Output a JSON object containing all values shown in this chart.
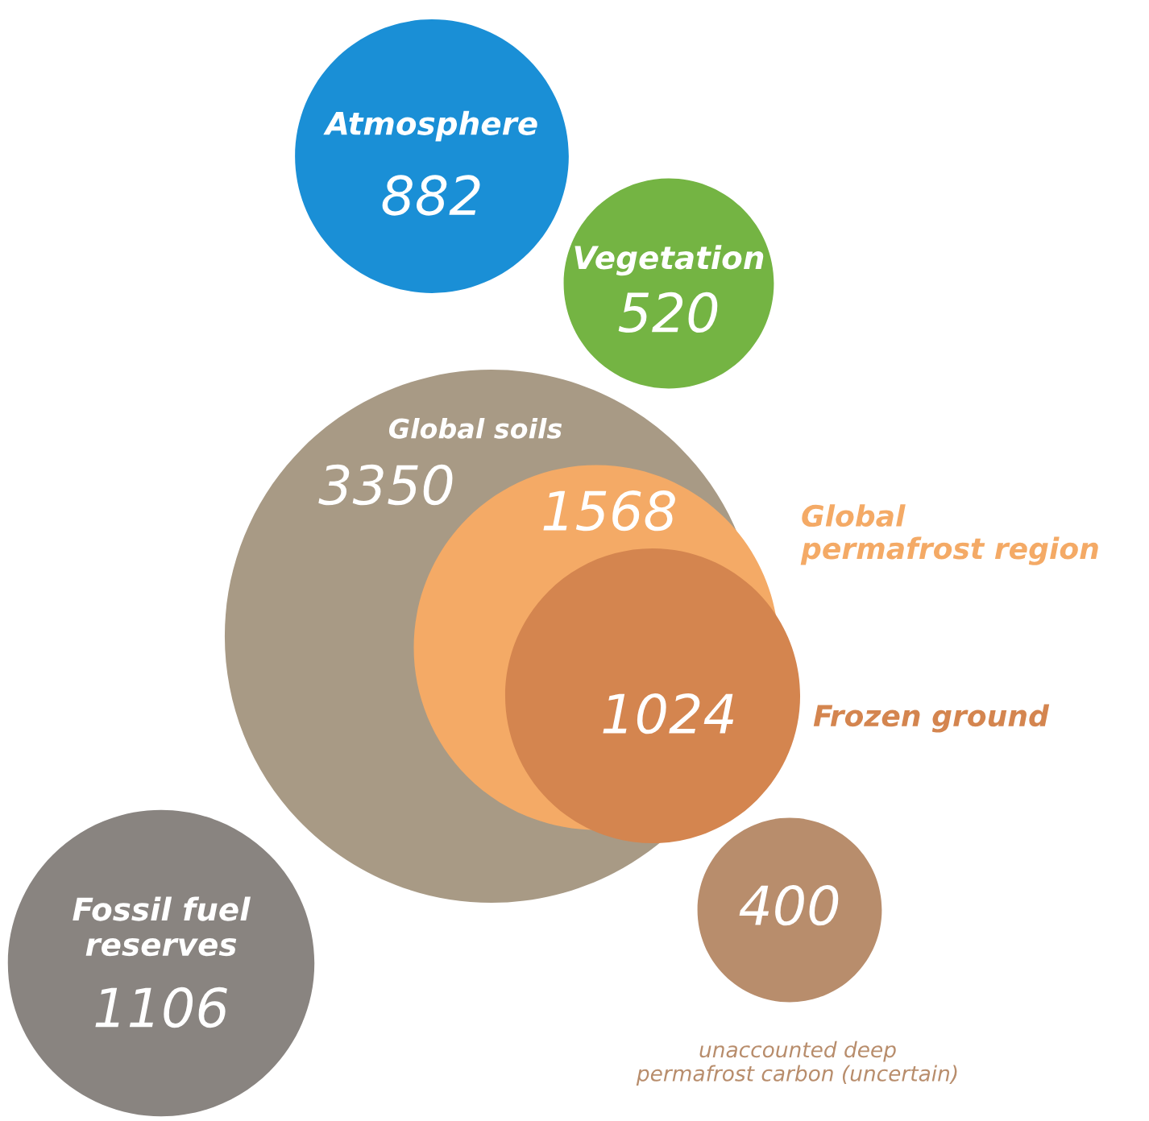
{
  "chart_data": {
    "type": "other",
    "categories": [
      "Atmosphere",
      "Vegetation",
      "Global soils",
      "Global\npermafrost region",
      "Frozen ground",
      "Fossil fuel\nreserves",
      "unaccounted deep\npermafrost carbon (uncertain)"
    ],
    "values": [
      882,
      520,
      3350,
      1568,
      1024,
      1106,
      400
    ],
    "data_labels": true,
    "colors": [
      "#1a8fd6",
      "#74b443",
      "#a89a85",
      "#f4aa66",
      "#d4854f",
      "#898480",
      "#b88d6c"
    ]
  }
}
